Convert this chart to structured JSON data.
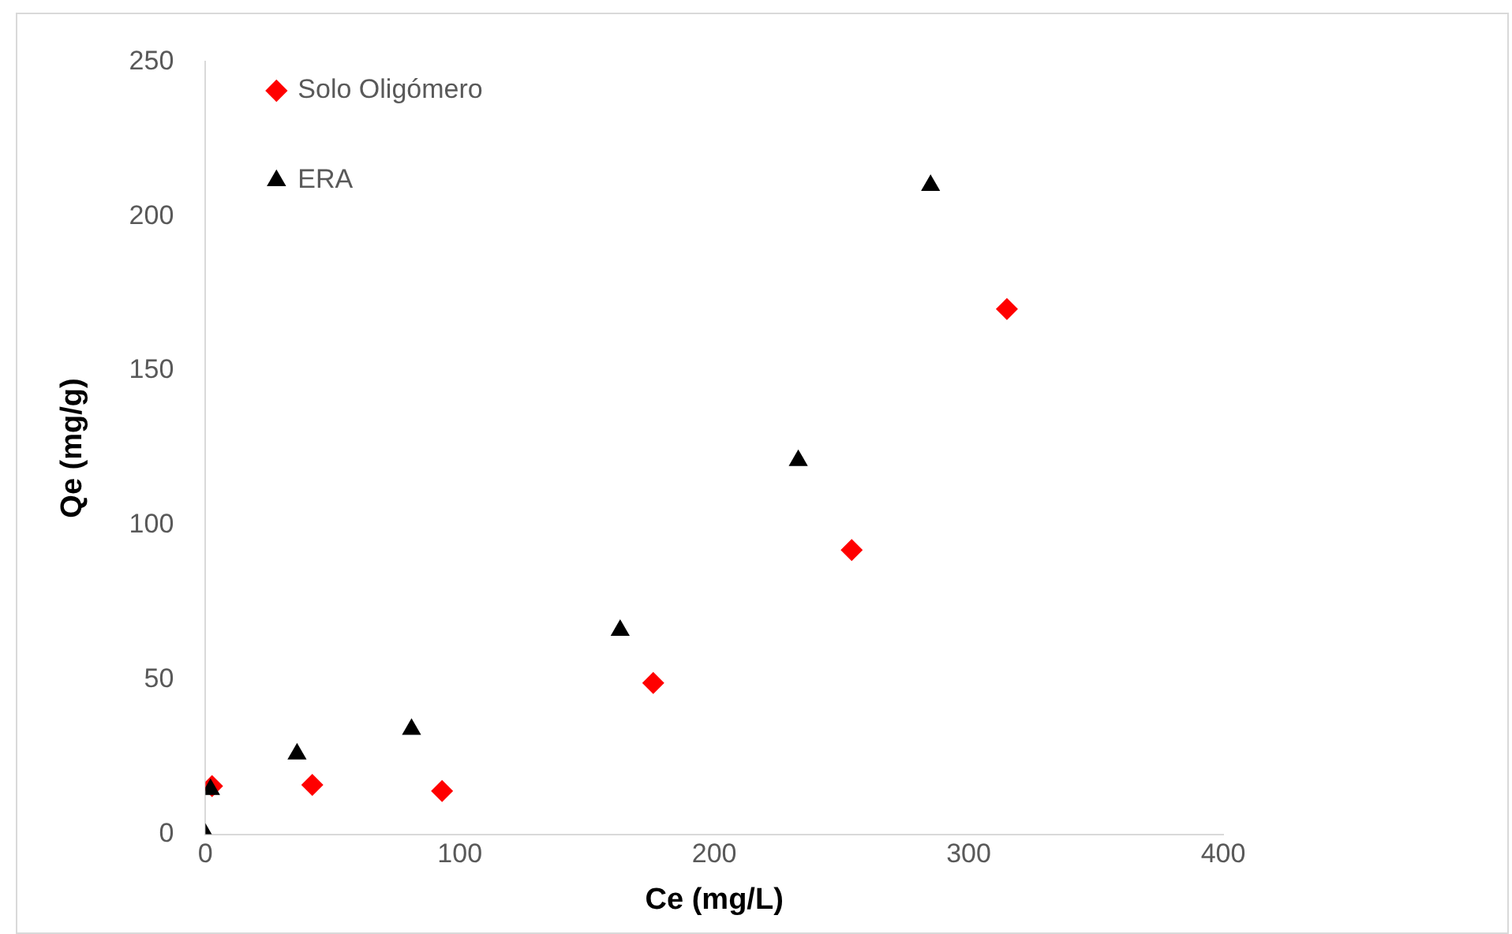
{
  "chart_data": {
    "type": "scatter",
    "xlabel": "Ce (mg/L)",
    "ylabel": "Qe (mg/g)",
    "xlim": [
      0,
      400
    ],
    "xticks": [
      0,
      100,
      200,
      300,
      400
    ],
    "ylim": [
      0,
      250
    ],
    "yticks": [
      0,
      50,
      100,
      150,
      200,
      250
    ],
    "grid": false,
    "legend": "top left",
    "series": [
      {
        "name": "Solo Oligómero",
        "color": "#ff0000",
        "marker": "diamond",
        "x": [
          2.6,
          42,
          93,
          176,
          254,
          315
        ],
        "values": [
          15.6,
          16,
          14,
          49,
          92,
          170
        ]
      },
      {
        "name": "ERA",
        "color": "#000000",
        "marker": "triangle",
        "x": [
          0,
          2,
          36,
          81,
          163,
          233,
          285
        ],
        "values": [
          0,
          14.5,
          26,
          34,
          66,
          121,
          210
        ]
      }
    ]
  }
}
